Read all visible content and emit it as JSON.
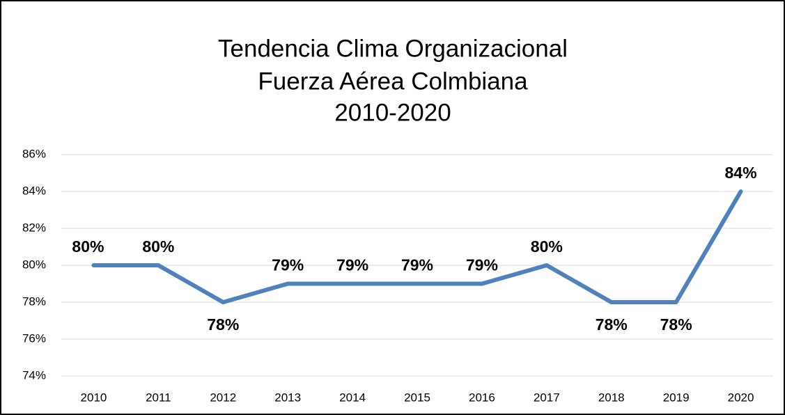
{
  "chart_data": {
    "type": "line",
    "title": [
      "Tendencia Clima Organizacional",
      "Fuerza Aérea Colmbiana",
      "2010-2020"
    ],
    "categories": [
      "2010",
      "2011",
      "2012",
      "2013",
      "2014",
      "2015",
      "2016",
      "2017",
      "2018",
      "2019",
      "2020"
    ],
    "series": [
      {
        "color": "#4f81bd",
        "values": [
          80,
          80,
          78,
          79,
          79,
          79,
          79,
          80,
          78,
          78,
          84
        ],
        "value_labels": [
          "80%",
          "80%",
          "78%",
          "79%",
          "79%",
          "79%",
          "79%",
          "80%",
          "78%",
          "78%",
          "84%"
        ]
      }
    ],
    "ylim": [
      74,
      86
    ],
    "yticks": [
      {
        "value": 74,
        "label": "74%"
      },
      {
        "value": 76,
        "label": "76%"
      },
      {
        "value": 78,
        "label": "78%"
      },
      {
        "value": 80,
        "label": "80%"
      },
      {
        "value": 82,
        "label": "82%"
      },
      {
        "value": 84,
        "label": "84%"
      },
      {
        "value": 86,
        "label": "86%"
      }
    ],
    "grid": true
  }
}
